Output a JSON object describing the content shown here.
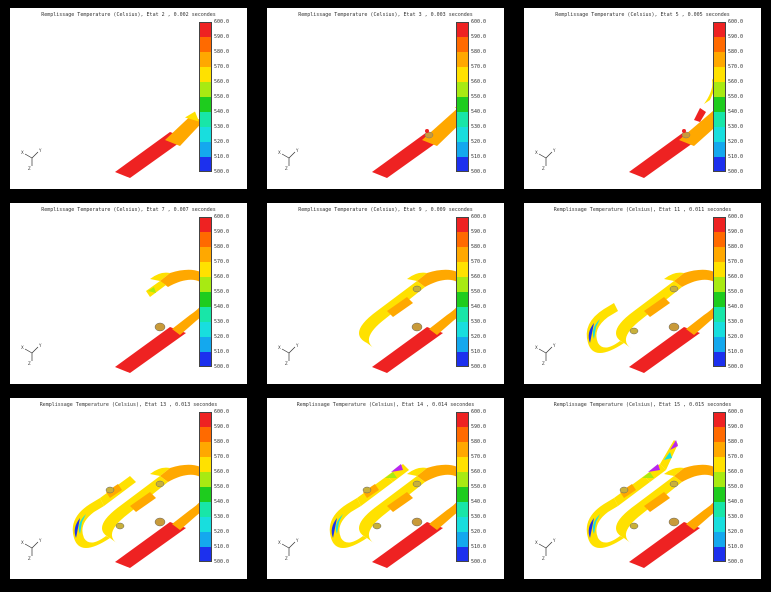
{
  "legend": {
    "ticks": [
      "600.0",
      "590.0",
      "580.0",
      "570.0",
      "560.0",
      "550.0",
      "540.0",
      "530.0",
      "520.0",
      "510.0",
      "500.0"
    ],
    "colors": [
      "#ee2222",
      "#ff6a00",
      "#ffa800",
      "#ffe100",
      "#a8ea12",
      "#1ecc1e",
      "#18e6a8",
      "#18dede",
      "#14a8ee",
      "#1c30ee",
      "#b826ee"
    ]
  },
  "axis_labels": {
    "x": "X",
    "y": "Y",
    "z": "Z"
  },
  "panels": [
    {
      "title": "Remplissage Temperature (Celsius), Etat 2 , 0.002 secondes",
      "stage": 2
    },
    {
      "title": "Remplissage Temperature (Celsius), Etat 3 , 0.003 secondes",
      "stage": 3
    },
    {
      "title": "Remplissage Temperature (Celsius), Etat 5 , 0.005 secondes",
      "stage": 5
    },
    {
      "title": "Remplissage Temperature (Celsius), Etat 7 , 0.007 secondes",
      "stage": 7
    },
    {
      "title": "Remplissage Temperature (Celsius), Etat 9 , 0.009 secondes",
      "stage": 9
    },
    {
      "title": "Remplissage Temperature (Celsius), Etat 11 , 0.011 secondes",
      "stage": 11
    },
    {
      "title": "Remplissage Temperature (Celsius), Etat 13 , 0.013 secondes",
      "stage": 13
    },
    {
      "title": "Remplissage Temperature (Celsius), Etat 14 , 0.014 secondes",
      "stage": 14
    },
    {
      "title": "Remplissage Temperature (Celsius), Etat 15 , 0.015 secondes",
      "stage": 15
    }
  ]
}
